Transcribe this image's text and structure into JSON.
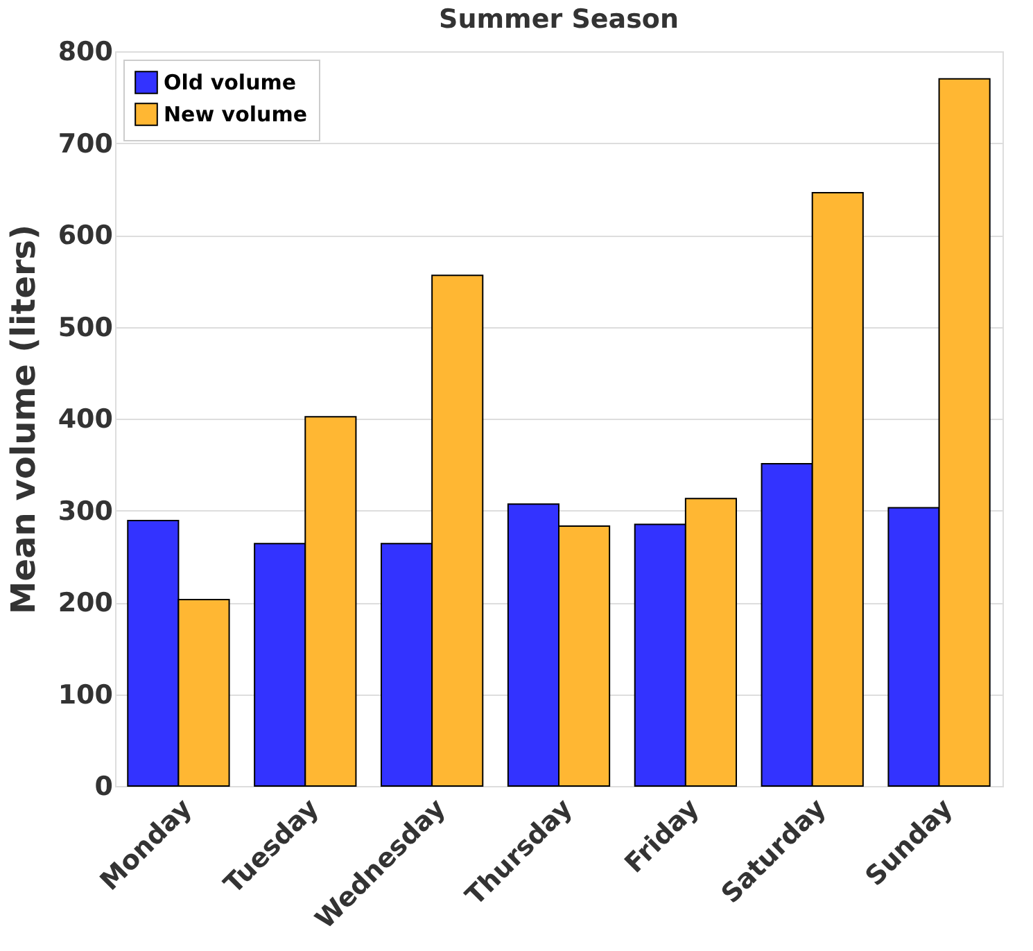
{
  "chart_data": {
    "type": "bar",
    "title": "Summer Season",
    "ylabel": "Mean volume (liters)",
    "categories": [
      "Monday",
      "Tuesday",
      "Wednesday",
      "Thursday",
      "Friday",
      "Saturday",
      "Sunday"
    ],
    "series": [
      {
        "name": "Old volume",
        "color": "#3333ff",
        "values": [
          289,
          264,
          264,
          307,
          285,
          351,
          303
        ]
      },
      {
        "name": "New volume",
        "color": "#ffb733",
        "values": [
          203,
          402,
          556,
          283,
          313,
          646,
          770
        ]
      }
    ],
    "ylim": [
      0,
      800
    ],
    "yticks": [
      0,
      100,
      200,
      300,
      400,
      500,
      600,
      700,
      800
    ],
    "grid": "y",
    "legend": "top left"
  }
}
